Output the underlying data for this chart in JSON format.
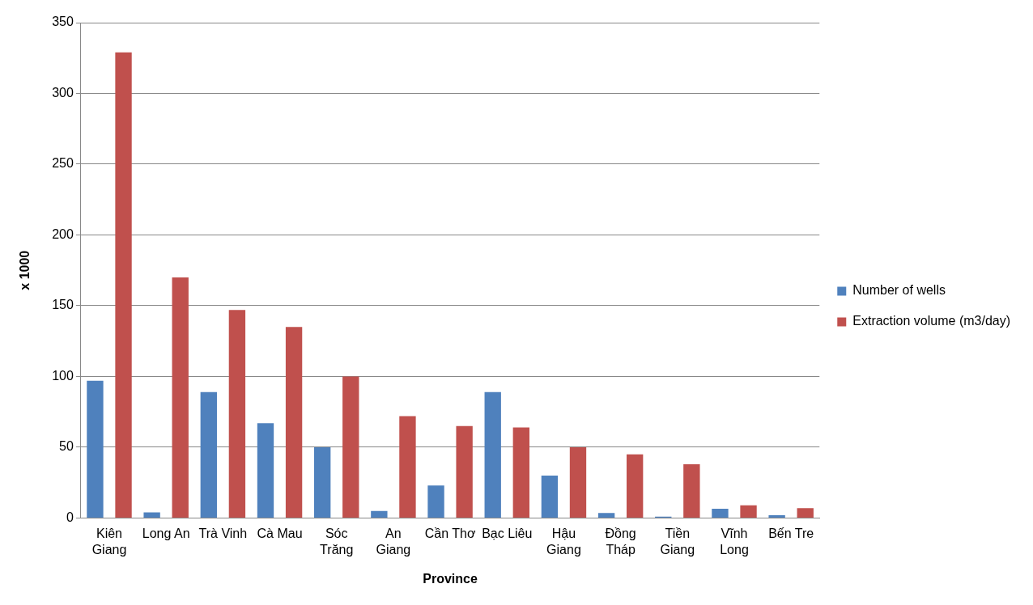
{
  "chart_data": {
    "type": "bar",
    "xlabel": "Province",
    "ylabel": "x 1000",
    "categories": [
      "Kiên Giang",
      "Long An",
      "Trà Vinh",
      "Cà Mau",
      "Sóc Trăng",
      "An Giang",
      "Cần Thơ",
      "Bạc Liêu",
      "Hậu Giang",
      "Đồng Tháp",
      "Tiền Giang",
      "Vĩnh Long",
      "Bến Tre"
    ],
    "series": [
      {
        "name": "Number of wells",
        "color": "#4f81bd",
        "values": [
          97,
          4,
          89,
          67,
          50,
          5,
          23,
          89,
          30,
          3.5,
          1,
          6.5,
          2
        ]
      },
      {
        "name": "Extraction volume (m3/day)",
        "color": "#c0504d",
        "values": [
          329,
          170,
          147,
          135,
          100,
          72,
          65,
          64,
          50,
          45,
          38,
          9,
          7
        ]
      }
    ],
    "ylim": [
      0,
      350
    ],
    "yticks": [
      0,
      50,
      100,
      150,
      200,
      250,
      300,
      350
    ],
    "grid": "y",
    "legend": "right"
  }
}
